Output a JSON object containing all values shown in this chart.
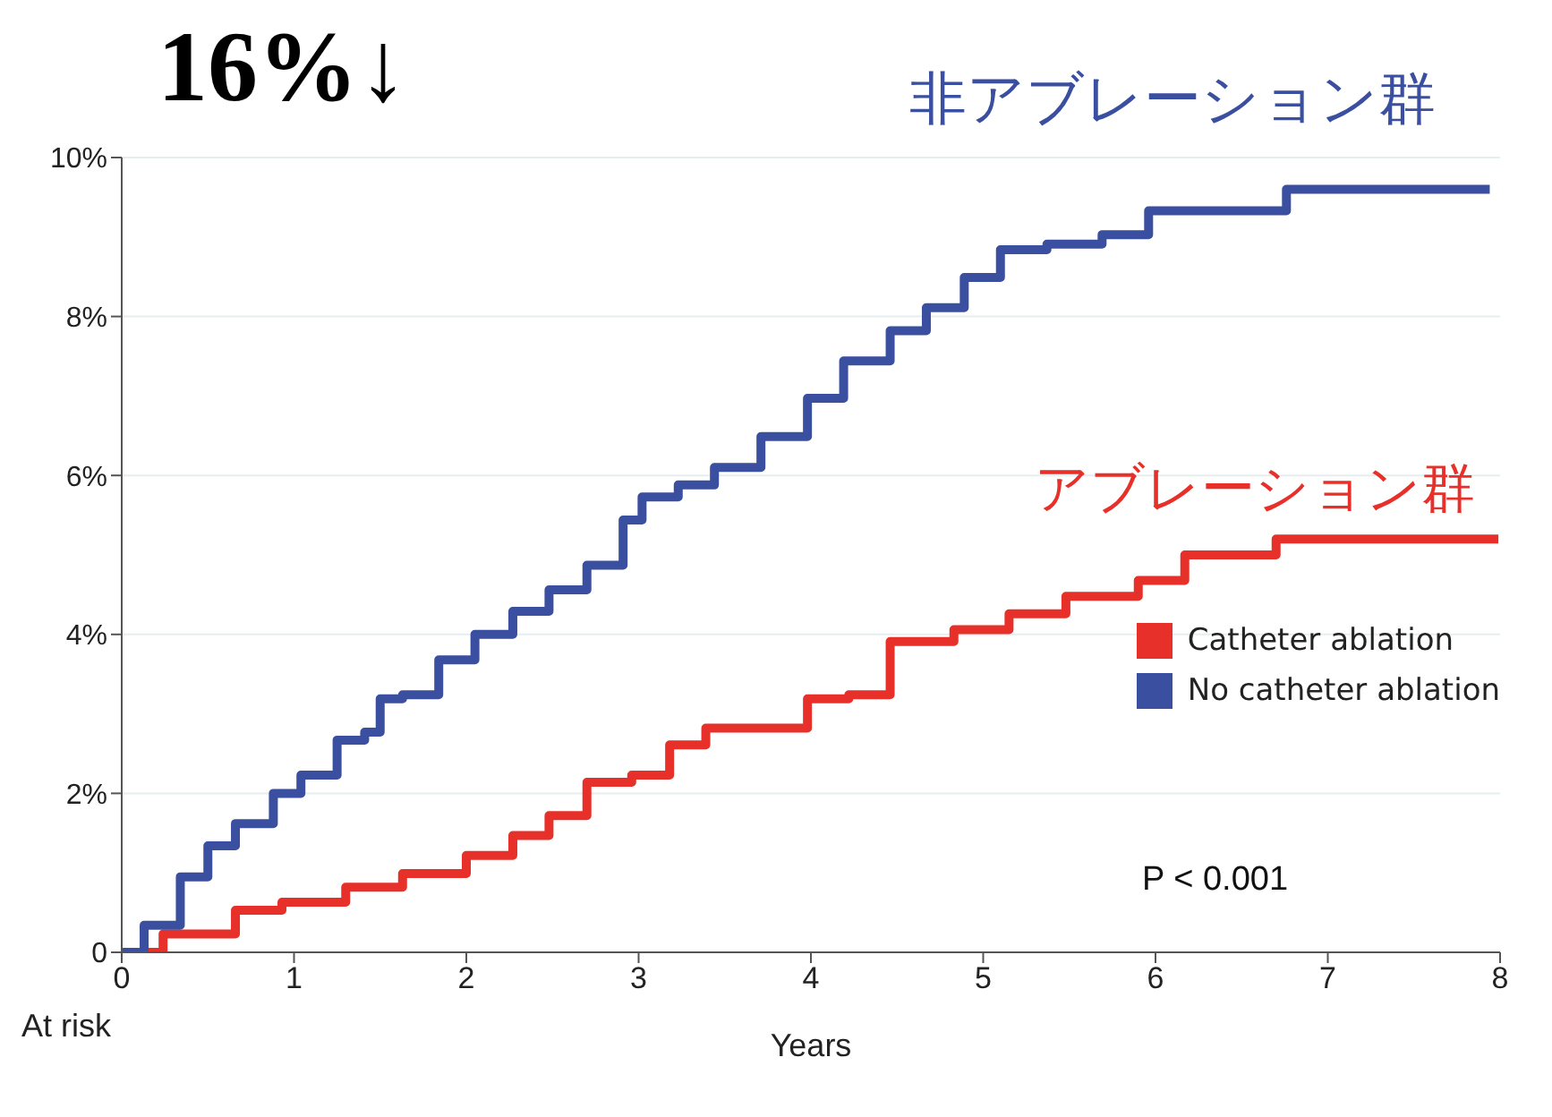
{
  "chart_data": {
    "type": "step",
    "xlabel": "Years",
    "xlim": [
      0,
      8
    ],
    "xticks": [
      0,
      1,
      2,
      3,
      4,
      5,
      6,
      7,
      8
    ],
    "ylim": [
      0,
      10
    ],
    "yticks": [
      0,
      {
        "value": 2,
        "label": "2%"
      },
      {
        "value": 4,
        "label": "4%"
      },
      {
        "value": 6,
        "label": "6%"
      },
      {
        "value": 8,
        "label": "8%"
      },
      {
        "value": 10,
        "label": "10%"
      }
    ],
    "grid": "y",
    "legend": "bottom right",
    "series": [
      {
        "name": "Catheter ablation",
        "color": "#e8302a",
        "x": [
          0,
          0.24,
          0.66,
          0.93,
          1.3,
          1.63,
          2.0,
          2.27,
          2.48,
          2.7,
          2.96,
          3.18,
          3.39,
          3.76,
          3.98,
          4.22,
          4.46,
          4.83,
          5.15,
          5.48,
          5.9,
          6.17,
          6.7,
          7.99
        ],
        "values": [
          0,
          0.23,
          0.53,
          0.63,
          0.82,
          0.99,
          1.22,
          1.47,
          1.72,
          2.14,
          2.23,
          2.61,
          2.82,
          2.82,
          3.19,
          3.24,
          3.91,
          4.06,
          4.26,
          4.48,
          4.68,
          5.0,
          5.2,
          5.2
        ]
      },
      {
        "name": "No catheter ablation",
        "color": "#3b4fa0",
        "x": [
          0,
          0.13,
          0.34,
          0.5,
          0.66,
          0.88,
          1.04,
          1.25,
          1.41,
          1.5,
          1.63,
          1.84,
          2.05,
          2.27,
          2.48,
          2.7,
          2.91,
          3.02,
          3.23,
          3.44,
          3.71,
          3.98,
          4.19,
          4.46,
          4.67,
          4.89,
          5.1,
          5.37,
          5.69,
          5.96,
          6.76,
          7.94
        ],
        "values": [
          0,
          0.34,
          0.95,
          1.34,
          1.62,
          2.0,
          2.23,
          2.67,
          2.77,
          3.19,
          3.24,
          3.68,
          4.0,
          4.29,
          4.56,
          4.87,
          5.44,
          5.73,
          5.88,
          6.1,
          6.49,
          6.97,
          7.44,
          7.82,
          8.11,
          8.49,
          8.84,
          8.91,
          9.03,
          9.33,
          9.6,
          9.6
        ]
      }
    ],
    "annotations": [
      "16%↓",
      "非アブレーション群",
      "アブレーション群",
      "P < 0.001",
      "At risk"
    ]
  }
}
